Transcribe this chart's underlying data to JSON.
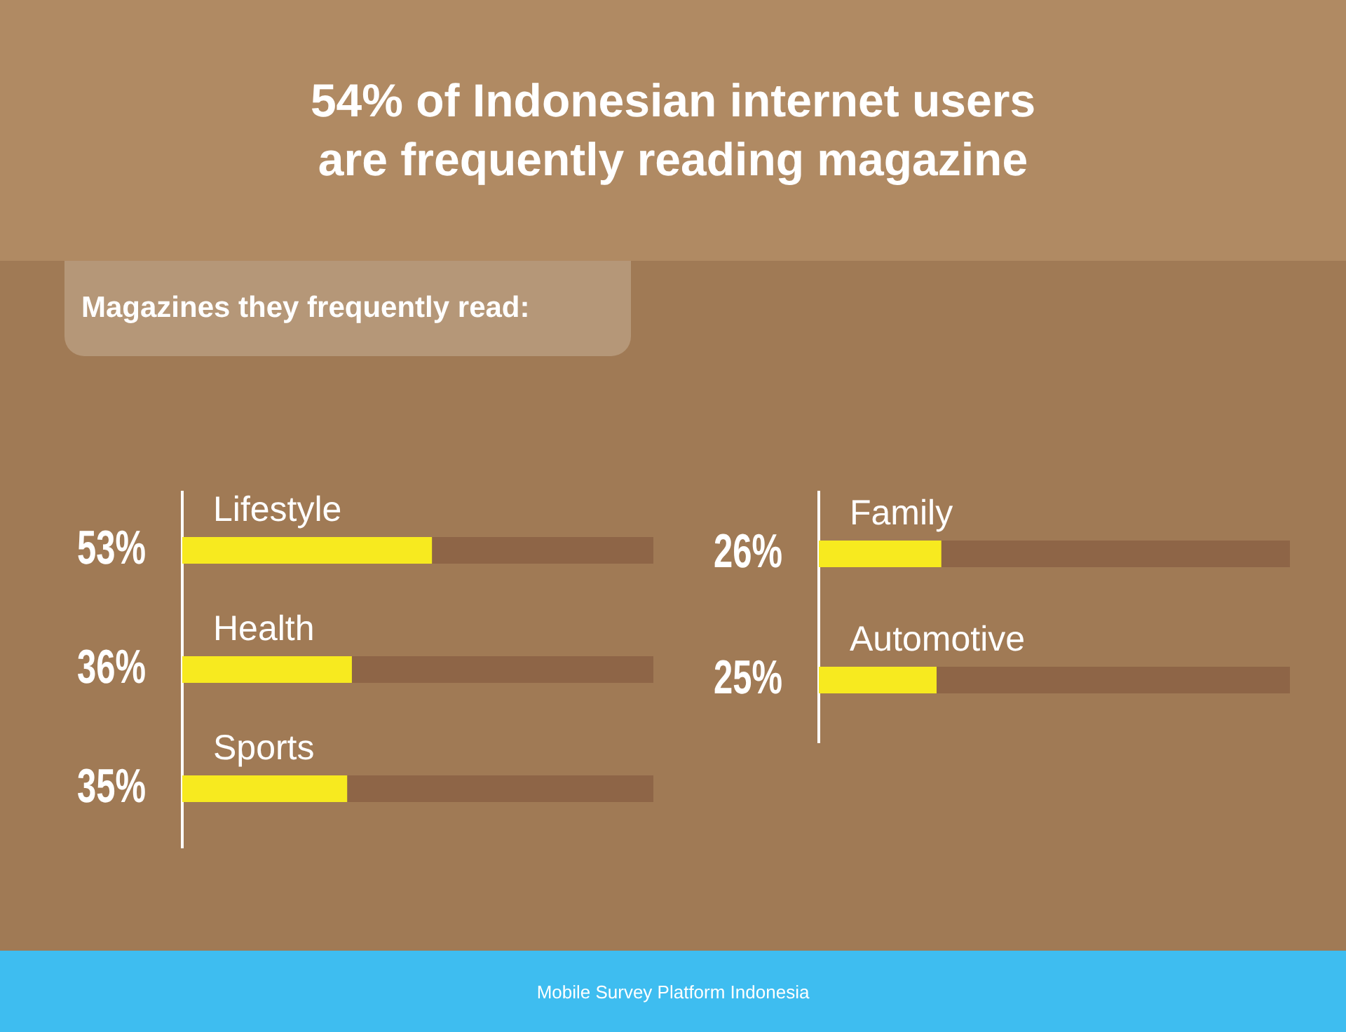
{
  "chart_data": [
    {
      "type": "bar",
      "orientation": "horizontal",
      "stacked": true,
      "title": "54% of Indonesian internet users\nare frequently reading magazine",
      "subtitle": "Magazines they frequently read:",
      "annotations": [
        "Mobile Survey Platform Indonesia"
      ],
      "categories": [
        "Lifestyle",
        "Health",
        "Sports"
      ],
      "series": [
        {
          "color": "#f7ea1f",
          "values": [
            53,
            36,
            35
          ],
          "value_labels": [
            "53%",
            "36%",
            "35%"
          ]
        },
        {
          "color": "#8e6547",
          "values": [
            47,
            64,
            65
          ]
        }
      ],
      "xlim": [
        0,
        100
      ],
      "tick_labels": false,
      "grid": false,
      "legend": false
    },
    {
      "type": "bar",
      "orientation": "horizontal",
      "stacked": true,
      "categories": [
        "Family",
        "Automotive"
      ],
      "series": [
        {
          "color": "#f7ea1f",
          "values": [
            26,
            25
          ],
          "value_labels": [
            "26%",
            "25%"
          ]
        },
        {
          "color": "#8e6547",
          "values": [
            74,
            75
          ]
        }
      ],
      "xlim": [
        0,
        100
      ],
      "tick_labels": false,
      "grid": false,
      "legend": false
    }
  ]
}
